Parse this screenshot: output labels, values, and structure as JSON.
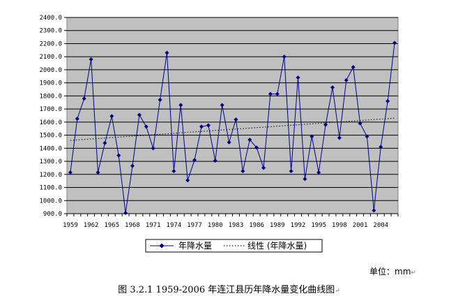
{
  "chart_data": {
    "type": "line",
    "x": [
      1959,
      1960,
      1961,
      1962,
      1963,
      1964,
      1965,
      1966,
      1967,
      1968,
      1969,
      1970,
      1971,
      1972,
      1973,
      1974,
      1975,
      1976,
      1977,
      1978,
      1979,
      1980,
      1981,
      1982,
      1983,
      1984,
      1985,
      1986,
      1987,
      1988,
      1989,
      1990,
      1991,
      1992,
      1993,
      1994,
      1995,
      1996,
      1997,
      1998,
      1999,
      2000,
      2001,
      2002,
      2003,
      2004,
      2005,
      2006
    ],
    "xticks": [
      "1959",
      "1962",
      "1965",
      "1968",
      "1971",
      "1974",
      "1977",
      "1980",
      "1983",
      "1986",
      "1989",
      "1992",
      "1995",
      "1998",
      "2001",
      "2004"
    ],
    "yticks": [
      "900.0",
      "1000.0",
      "1100.0",
      "1200.0",
      "1300.0",
      "1400.0",
      "1500.0",
      "1600.0",
      "1700.0",
      "1800.0",
      "1900.0",
      "2000.0",
      "2100.0",
      "2200.0",
      "2300.0",
      "2400.0"
    ],
    "ylim": [
      900,
      2400
    ],
    "series": [
      {
        "name": "年降水量",
        "color": "#00008B",
        "values": [
          1215,
          1625,
          1780,
          2080,
          1215,
          1440,
          1645,
          1345,
          905,
          1265,
          1655,
          1565,
          1400,
          1770,
          2130,
          1225,
          1730,
          1155,
          1310,
          1565,
          1575,
          1305,
          1730,
          1445,
          1620,
          1225,
          1465,
          1405,
          1250,
          1815,
          1815,
          2100,
          1225,
          1940,
          1165,
          1490,
          1215,
          1580,
          1865,
          1480,
          1920,
          2020,
          1590,
          1490,
          925,
          1410,
          1760,
          2205
        ]
      }
    ],
    "trend": {
      "name": "线性 (年降水量)",
      "start": 1460,
      "end": 1630
    },
    "grid": true,
    "legend_position": "bottom"
  },
  "legend": {
    "series_label": "年降水量",
    "trend_label": "线性 (年降水量)"
  },
  "unit_label": "单位：mm",
  "caption": "图 3.2.1 1959-2006 年连江县历年降水量变化曲线图"
}
